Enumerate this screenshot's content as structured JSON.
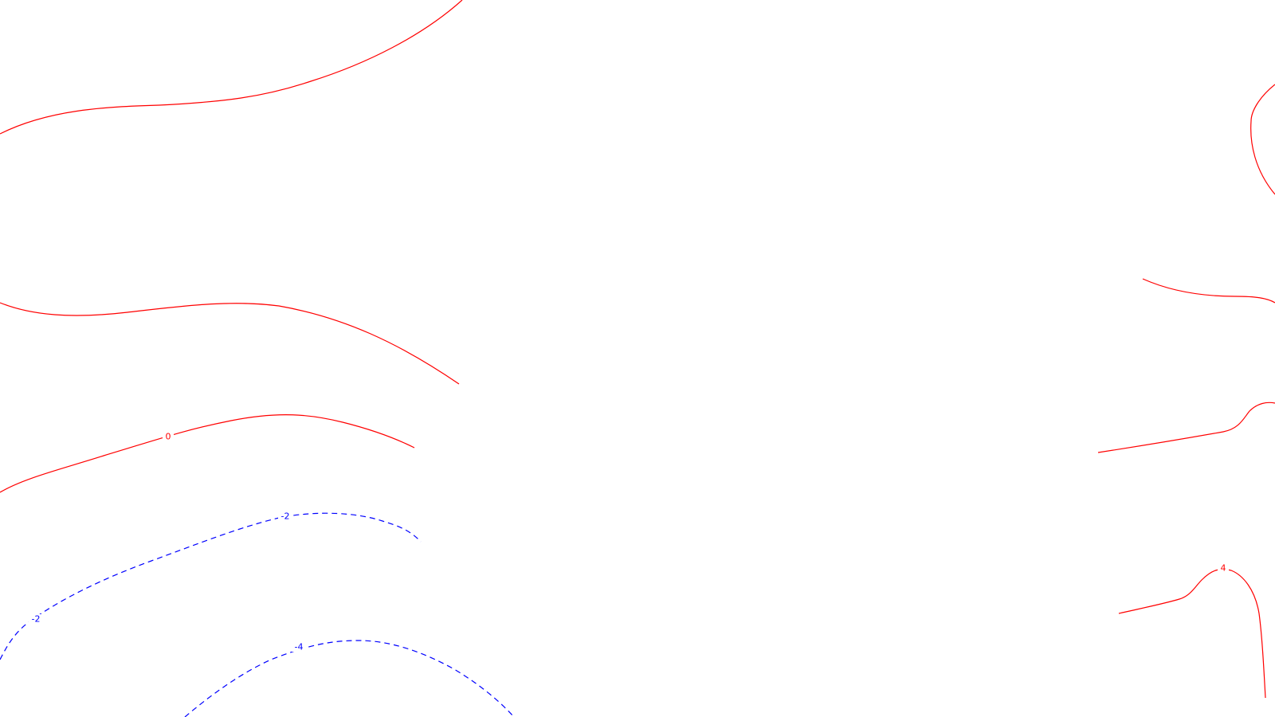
{
  "colors": {
    "background": "#ffffff",
    "positive_contour": "#ff0000",
    "negative_contour": "#0000ff"
  },
  "contour_labels": {
    "zero": "0",
    "neg2_left": "-2",
    "neg2_mid": "-2",
    "neg4": "-4",
    "pos4_right": "4"
  }
}
